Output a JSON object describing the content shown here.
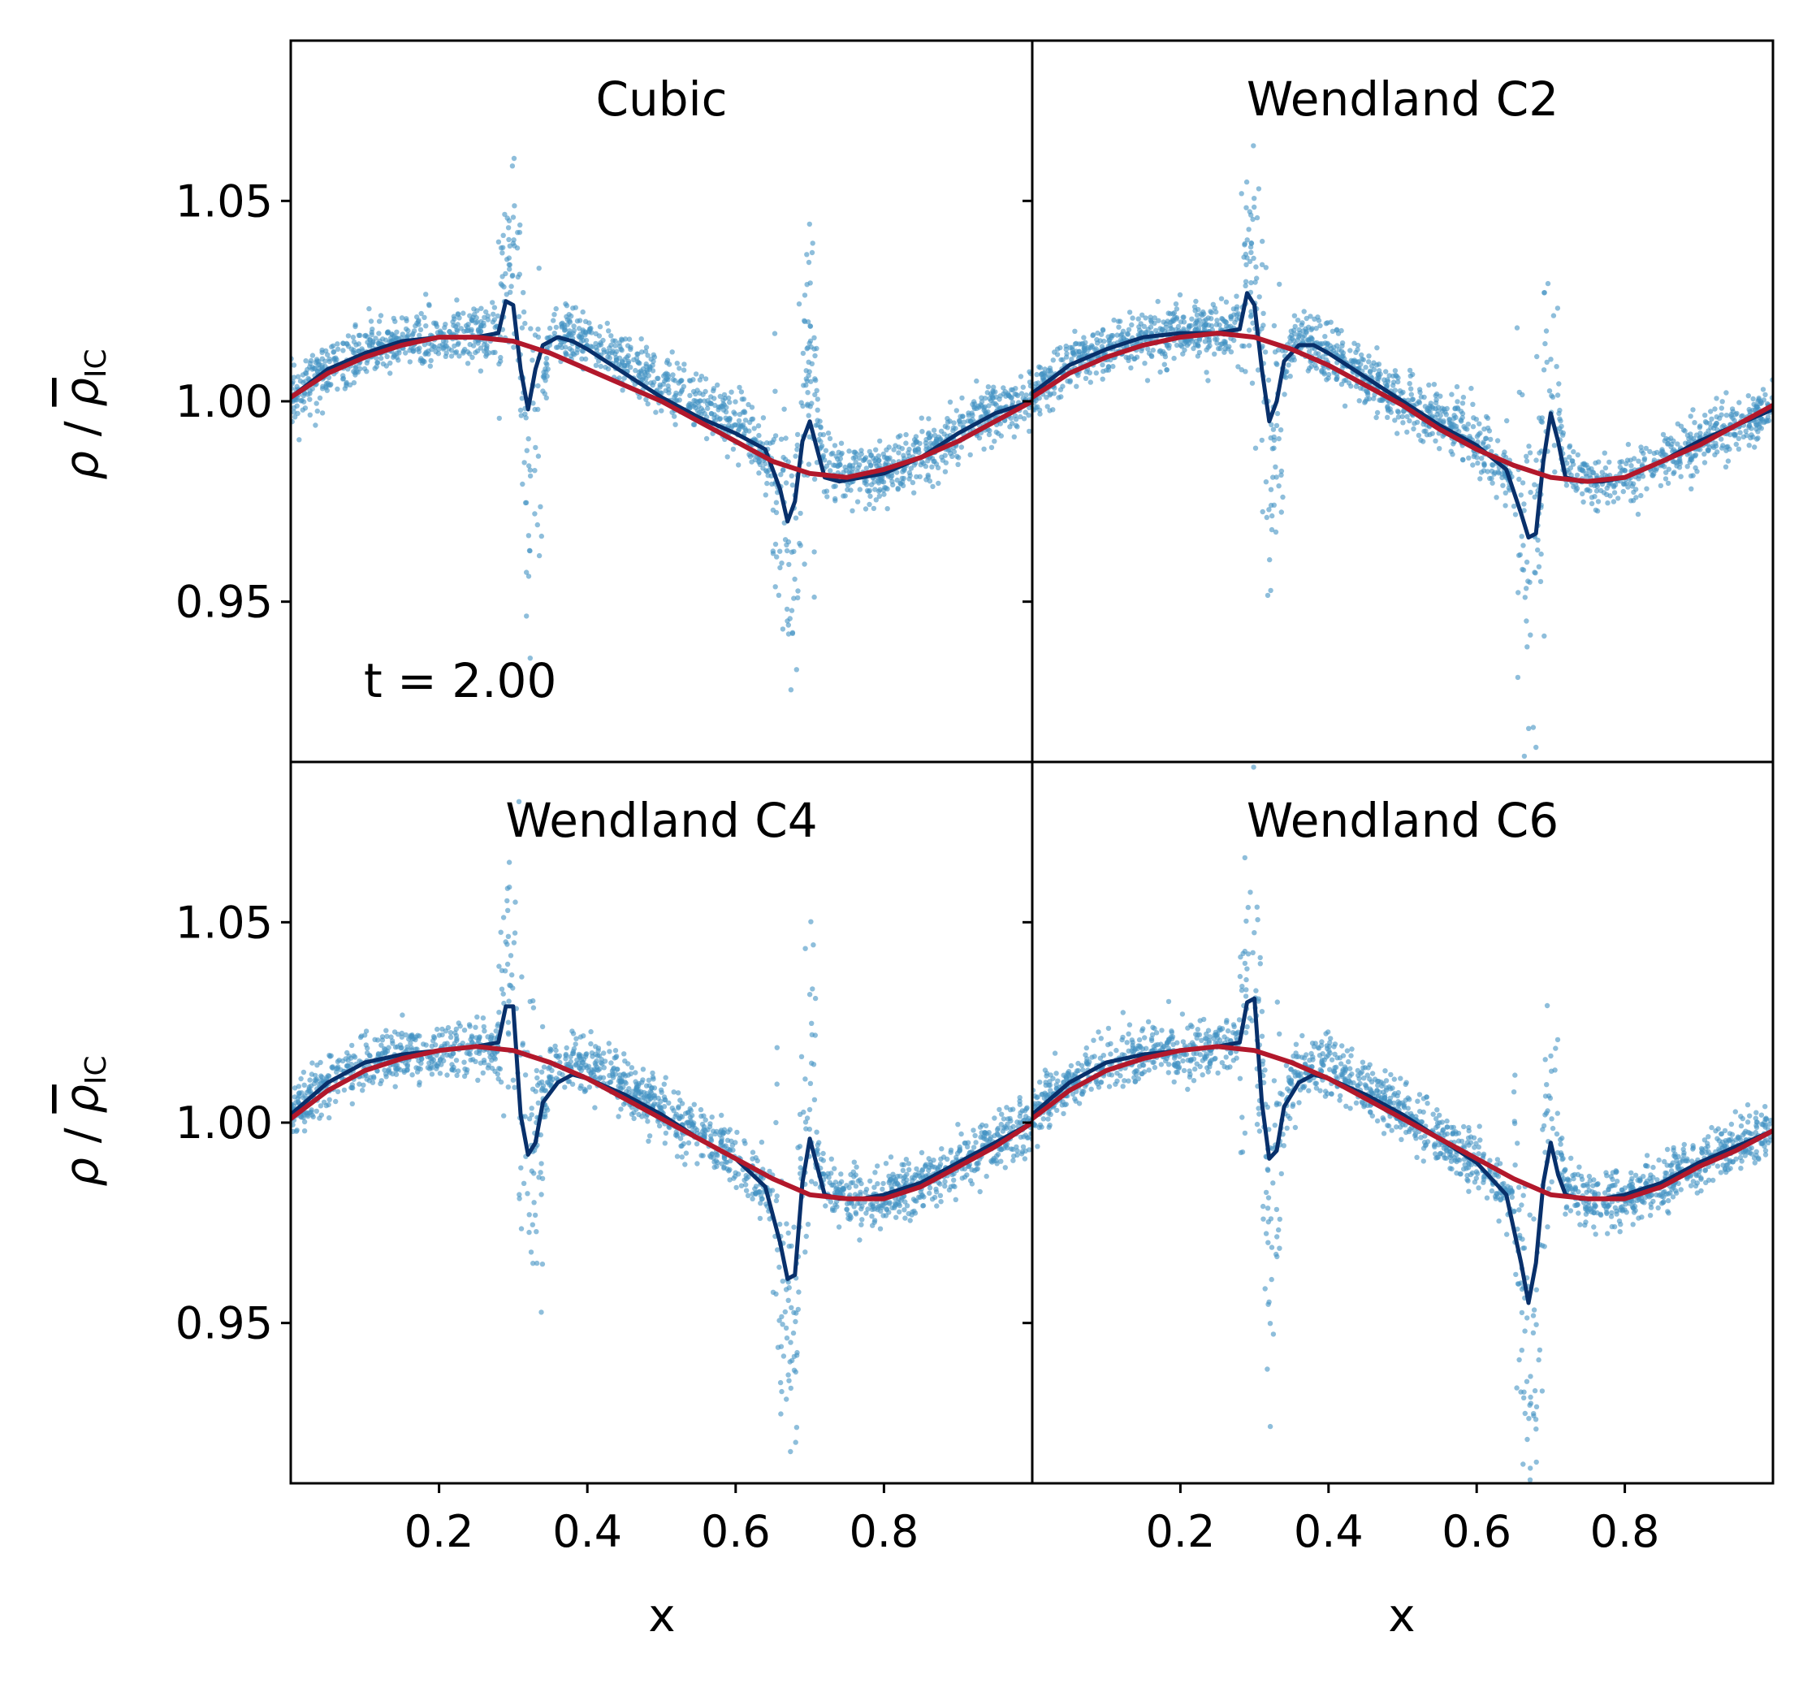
{
  "figure": {
    "annotation": "t = 2.00",
    "ylabel": "ρ / ρIC",
    "xlabel": "x"
  },
  "chart_data": [
    {
      "type": "scatter",
      "title": "Cubic",
      "xlabel": "",
      "ylabel": "ρ / ρIC",
      "xlim": [
        0,
        1
      ],
      "ylim": [
        0.91,
        1.09
      ],
      "xticks": [
        0.2,
        0.4,
        0.6,
        0.8
      ],
      "yticks": [
        0.95,
        1.0,
        1.05
      ],
      "annotation": "t = 2.00",
      "series": [
        {
          "kind": "scatter",
          "color": "#4393c3",
          "x": [
            0.0,
            0.05,
            0.1,
            0.15,
            0.2,
            0.25,
            0.28,
            0.3,
            0.31,
            0.32,
            0.33,
            0.35,
            0.38,
            0.4,
            0.45,
            0.5,
            0.55,
            0.6,
            0.65,
            0.67,
            0.68,
            0.69,
            0.7,
            0.72,
            0.75,
            0.8,
            0.85,
            0.9,
            0.95,
            1.0
          ],
          "y": [
            1.001,
            1.008,
            1.012,
            1.015,
            1.016,
            1.016,
            1.017,
            1.04,
            1.01,
            0.975,
            0.99,
            1.016,
            1.016,
            1.014,
            1.01,
            1.005,
            1.0,
            0.995,
            0.985,
            0.965,
            0.955,
            1.005,
            1.01,
            0.985,
            0.981,
            0.982,
            0.986,
            0.992,
            0.998,
            1.0
          ]
        },
        {
          "kind": "line",
          "color": "#08306b",
          "x": [
            0.0,
            0.05,
            0.1,
            0.15,
            0.2,
            0.25,
            0.28,
            0.29,
            0.3,
            0.31,
            0.32,
            0.33,
            0.34,
            0.36,
            0.38,
            0.4,
            0.45,
            0.5,
            0.55,
            0.6,
            0.64,
            0.66,
            0.67,
            0.68,
            0.69,
            0.7,
            0.71,
            0.72,
            0.74,
            0.77,
            0.8,
            0.85,
            0.9,
            0.95,
            1.0
          ],
          "y": [
            1.001,
            1.008,
            1.012,
            1.015,
            1.016,
            1.016,
            1.017,
            1.025,
            1.024,
            1.008,
            0.998,
            1.008,
            1.014,
            1.016,
            1.015,
            1.013,
            1.007,
            1.001,
            0.996,
            0.992,
            0.988,
            0.978,
            0.97,
            0.975,
            0.99,
            0.995,
            0.988,
            0.981,
            0.98,
            0.981,
            0.982,
            0.986,
            0.992,
            0.997,
            1.0
          ]
        },
        {
          "kind": "line",
          "color": "#b2182b",
          "x": [
            0.0,
            0.05,
            0.1,
            0.15,
            0.2,
            0.25,
            0.3,
            0.35,
            0.4,
            0.45,
            0.5,
            0.55,
            0.6,
            0.65,
            0.7,
            0.75,
            0.8,
            0.85,
            0.9,
            0.95,
            1.0
          ],
          "y": [
            1.001,
            1.007,
            1.011,
            1.014,
            1.016,
            1.016,
            1.015,
            1.012,
            1.008,
            1.004,
            1.0,
            0.995,
            0.99,
            0.985,
            0.982,
            0.981,
            0.983,
            0.986,
            0.99,
            0.995,
            1.0
          ]
        }
      ]
    },
    {
      "type": "scatter",
      "title": "Wendland C2",
      "xlabel": "",
      "ylabel": "",
      "xlim": [
        0,
        1
      ],
      "ylim": [
        0.91,
        1.09
      ],
      "xticks": [
        0.2,
        0.4,
        0.6,
        0.8
      ],
      "yticks": [
        0.95,
        1.0,
        1.05
      ],
      "series": [
        {
          "kind": "scatter",
          "color": "#4393c3",
          "x": [
            0.0,
            0.05,
            0.1,
            0.15,
            0.2,
            0.25,
            0.28,
            0.3,
            0.31,
            0.32,
            0.33,
            0.35,
            0.38,
            0.4,
            0.45,
            0.5,
            0.55,
            0.6,
            0.65,
            0.67,
            0.68,
            0.69,
            0.7,
            0.72,
            0.75,
            0.8,
            0.85,
            0.9,
            0.95,
            1.0
          ],
          "y": [
            1.002,
            1.009,
            1.013,
            1.016,
            1.017,
            1.017,
            1.018,
            1.035,
            1.01,
            0.975,
            0.995,
            1.015,
            1.015,
            1.012,
            1.006,
            1.0,
            0.995,
            0.99,
            0.98,
            0.96,
            0.955,
            1.0,
            1.01,
            0.983,
            0.98,
            0.981,
            0.985,
            0.99,
            0.994,
            0.998
          ]
        },
        {
          "kind": "line",
          "color": "#08306b",
          "x": [
            0.0,
            0.05,
            0.1,
            0.15,
            0.2,
            0.25,
            0.28,
            0.29,
            0.3,
            0.31,
            0.32,
            0.33,
            0.34,
            0.36,
            0.38,
            0.4,
            0.45,
            0.5,
            0.55,
            0.6,
            0.64,
            0.66,
            0.67,
            0.68,
            0.69,
            0.7,
            0.71,
            0.72,
            0.74,
            0.77,
            0.8,
            0.85,
            0.9,
            0.95,
            1.0
          ],
          "y": [
            1.002,
            1.009,
            1.013,
            1.016,
            1.017,
            1.017,
            1.018,
            1.027,
            1.024,
            1.008,
            0.995,
            1.0,
            1.01,
            1.014,
            1.014,
            1.012,
            1.006,
            1.0,
            0.994,
            0.989,
            0.983,
            0.972,
            0.966,
            0.967,
            0.985,
            0.997,
            0.99,
            0.981,
            0.98,
            0.98,
            0.981,
            0.985,
            0.99,
            0.994,
            0.998
          ]
        },
        {
          "kind": "line",
          "color": "#b2182b",
          "x": [
            0.0,
            0.05,
            0.1,
            0.15,
            0.2,
            0.25,
            0.3,
            0.35,
            0.4,
            0.45,
            0.5,
            0.55,
            0.6,
            0.65,
            0.7,
            0.75,
            0.8,
            0.85,
            0.9,
            0.95,
            1.0
          ],
          "y": [
            1.001,
            1.007,
            1.011,
            1.014,
            1.016,
            1.017,
            1.016,
            1.013,
            1.009,
            1.004,
            0.999,
            0.993,
            0.988,
            0.984,
            0.981,
            0.98,
            0.981,
            0.985,
            0.989,
            0.994,
            0.999
          ]
        }
      ]
    },
    {
      "type": "scatter",
      "title": "Wendland C4",
      "xlabel": "x",
      "ylabel": "ρ / ρIC",
      "xlim": [
        0,
        1
      ],
      "ylim": [
        0.91,
        1.09
      ],
      "xticks": [
        0.2,
        0.4,
        0.6,
        0.8
      ],
      "yticks": [
        0.95,
        1.0,
        1.05
      ],
      "series": [
        {
          "kind": "scatter",
          "color": "#4393c3",
          "x": [
            0.0,
            0.05,
            0.1,
            0.15,
            0.2,
            0.25,
            0.28,
            0.3,
            0.31,
            0.32,
            0.33,
            0.35,
            0.38,
            0.4,
            0.45,
            0.5,
            0.55,
            0.6,
            0.65,
            0.67,
            0.68,
            0.69,
            0.7,
            0.72,
            0.75,
            0.8,
            0.85,
            0.9,
            0.95,
            1.0
          ],
          "y": [
            1.002,
            1.01,
            1.015,
            1.017,
            1.018,
            1.019,
            1.02,
            1.04,
            1.015,
            0.98,
            0.995,
            1.012,
            1.015,
            1.014,
            1.009,
            1.003,
            0.997,
            0.991,
            0.982,
            0.95,
            0.945,
            0.995,
            1.005,
            0.984,
            0.981,
            0.981,
            0.985,
            0.99,
            0.995,
            1.0
          ]
        },
        {
          "kind": "line",
          "color": "#08306b",
          "x": [
            0.0,
            0.05,
            0.1,
            0.15,
            0.2,
            0.25,
            0.28,
            0.29,
            0.3,
            0.31,
            0.32,
            0.33,
            0.34,
            0.36,
            0.38,
            0.4,
            0.45,
            0.5,
            0.55,
            0.6,
            0.64,
            0.66,
            0.67,
            0.68,
            0.69,
            0.7,
            0.71,
            0.72,
            0.74,
            0.77,
            0.8,
            0.85,
            0.9,
            0.95,
            1.0
          ],
          "y": [
            1.002,
            1.01,
            1.015,
            1.017,
            1.018,
            1.019,
            1.02,
            1.029,
            1.029,
            1.002,
            0.992,
            0.995,
            1.005,
            1.01,
            1.012,
            1.011,
            1.007,
            1.002,
            0.996,
            0.991,
            0.984,
            0.97,
            0.961,
            0.962,
            0.985,
            0.996,
            0.989,
            0.982,
            0.981,
            0.981,
            0.982,
            0.985,
            0.99,
            0.995,
            1.0
          ]
        },
        {
          "kind": "line",
          "color": "#b2182b",
          "x": [
            0.0,
            0.05,
            0.1,
            0.15,
            0.2,
            0.25,
            0.3,
            0.35,
            0.4,
            0.45,
            0.5,
            0.55,
            0.6,
            0.65,
            0.7,
            0.75,
            0.8,
            0.85,
            0.9,
            0.95,
            1.0
          ],
          "y": [
            1.001,
            1.008,
            1.013,
            1.016,
            1.018,
            1.019,
            1.018,
            1.015,
            1.011,
            1.006,
            1.001,
            0.996,
            0.991,
            0.986,
            0.982,
            0.981,
            0.981,
            0.984,
            0.989,
            0.994,
            1.0
          ]
        }
      ]
    },
    {
      "type": "scatter",
      "title": "Wendland C6",
      "xlabel": "x",
      "ylabel": "",
      "xlim": [
        0,
        1
      ],
      "ylim": [
        0.91,
        1.09
      ],
      "xticks": [
        0.2,
        0.4,
        0.6,
        0.8
      ],
      "yticks": [
        0.95,
        1.0,
        1.05
      ],
      "series": [
        {
          "kind": "scatter",
          "color": "#4393c3",
          "x": [
            0.0,
            0.05,
            0.1,
            0.15,
            0.2,
            0.25,
            0.28,
            0.3,
            0.31,
            0.32,
            0.33,
            0.35,
            0.38,
            0.4,
            0.45,
            0.5,
            0.55,
            0.6,
            0.65,
            0.67,
            0.68,
            0.69,
            0.7,
            0.72,
            0.75,
            0.8,
            0.85,
            0.9,
            0.95,
            1.0
          ],
          "y": [
            1.002,
            1.01,
            1.015,
            1.017,
            1.018,
            1.019,
            1.02,
            1.045,
            1.012,
            0.975,
            0.99,
            1.01,
            1.014,
            1.014,
            1.009,
            1.002,
            0.996,
            0.99,
            0.98,
            0.945,
            0.935,
            0.99,
            1.008,
            0.984,
            0.981,
            0.981,
            0.985,
            0.99,
            0.994,
            0.998
          ]
        },
        {
          "kind": "line",
          "color": "#08306b",
          "x": [
            0.0,
            0.05,
            0.1,
            0.15,
            0.2,
            0.25,
            0.28,
            0.29,
            0.3,
            0.31,
            0.32,
            0.33,
            0.34,
            0.36,
            0.38,
            0.4,
            0.45,
            0.5,
            0.55,
            0.6,
            0.64,
            0.66,
            0.67,
            0.68,
            0.69,
            0.7,
            0.71,
            0.72,
            0.74,
            0.77,
            0.8,
            0.85,
            0.9,
            0.95,
            1.0
          ],
          "y": [
            1.002,
            1.01,
            1.015,
            1.017,
            1.018,
            1.019,
            1.02,
            1.03,
            1.031,
            1.005,
            0.991,
            0.993,
            1.004,
            1.01,
            1.012,
            1.011,
            1.007,
            1.002,
            0.996,
            0.99,
            0.982,
            0.965,
            0.955,
            0.965,
            0.985,
            0.995,
            0.987,
            0.982,
            0.981,
            0.981,
            0.982,
            0.985,
            0.99,
            0.994,
            0.998
          ]
        },
        {
          "kind": "line",
          "color": "#b2182b",
          "x": [
            0.0,
            0.05,
            0.1,
            0.15,
            0.2,
            0.25,
            0.3,
            0.35,
            0.4,
            0.45,
            0.5,
            0.55,
            0.6,
            0.65,
            0.7,
            0.75,
            0.8,
            0.85,
            0.9,
            0.95,
            1.0
          ],
          "y": [
            1.001,
            1.008,
            1.013,
            1.016,
            1.018,
            1.019,
            1.018,
            1.015,
            1.011,
            1.006,
            1.001,
            0.996,
            0.991,
            0.986,
            0.982,
            0.981,
            0.981,
            0.984,
            0.989,
            0.993,
            0.998
          ]
        }
      ]
    }
  ]
}
